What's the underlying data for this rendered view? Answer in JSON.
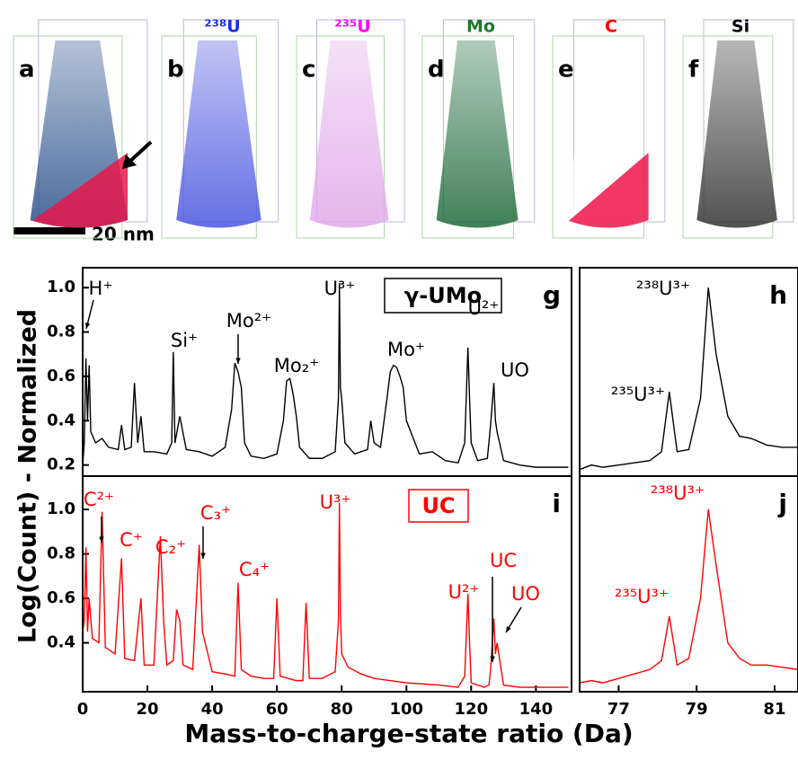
{
  "figure": {
    "panels": [
      {
        "letter": "a"
      },
      {
        "letter": "b",
        "element": "²³⁸U"
      },
      {
        "letter": "c",
        "element": "²³⁵U"
      },
      {
        "letter": "d",
        "element": "Mo"
      },
      {
        "letter": "e",
        "element": "C"
      },
      {
        "letter": "f",
        "element": "Si"
      }
    ],
    "scale_bar": "20 nm",
    "y_label": "Log(Count) - Normalized",
    "x_label": "Mass-to-charge-state ratio (Da)"
  },
  "chart_data": [
    {
      "type": "line",
      "label": "g",
      "title": "γ-UMo",
      "color": "#000000",
      "x": [
        0,
        0.5,
        1,
        1.5,
        2,
        2.5,
        4,
        6,
        8,
        11,
        12,
        13,
        15,
        16,
        17,
        18,
        19,
        22,
        26,
        27.5,
        28,
        28.5,
        30,
        32,
        36,
        40,
        44,
        46,
        47,
        48,
        49,
        50,
        52,
        56,
        60,
        62,
        63,
        64,
        65,
        66,
        67,
        70,
        74,
        78,
        79,
        79.3,
        79.6,
        80,
        81,
        84,
        88,
        89,
        90,
        92,
        94,
        95,
        96,
        97,
        98,
        99,
        100,
        104,
        108,
        112,
        116,
        118,
        119,
        119.5,
        120,
        122,
        125,
        126,
        127,
        127.5,
        128,
        130,
        135,
        140,
        145,
        150
      ],
      "values": [
        0.2,
        0.3,
        0.68,
        0.4,
        0.65,
        0.35,
        0.3,
        0.32,
        0.28,
        0.27,
        0.38,
        0.27,
        0.28,
        0.57,
        0.3,
        0.42,
        0.26,
        0.26,
        0.25,
        0.3,
        0.71,
        0.3,
        0.42,
        0.27,
        0.26,
        0.24,
        0.28,
        0.45,
        0.66,
        0.62,
        0.55,
        0.3,
        0.24,
        0.23,
        0.25,
        0.4,
        0.58,
        0.59,
        0.52,
        0.42,
        0.28,
        0.23,
        0.23,
        0.26,
        0.5,
        1.02,
        0.55,
        0.5,
        0.3,
        0.25,
        0.27,
        0.4,
        0.3,
        0.28,
        0.5,
        0.62,
        0.65,
        0.64,
        0.6,
        0.55,
        0.4,
        0.25,
        0.26,
        0.22,
        0.21,
        0.3,
        0.73,
        0.5,
        0.3,
        0.22,
        0.23,
        0.38,
        0.57,
        0.4,
        0.35,
        0.22,
        0.2,
        0.19,
        0.19,
        0.19
      ],
      "xlim": [
        0,
        151
      ],
      "ylim": [
        0.15,
        1.09
      ],
      "yticks": [
        0.2,
        0.4,
        0.6,
        0.8,
        {
          "value": 1,
          "label": "1.0"
        }
      ],
      "annotations": [
        "H⁺",
        "Si⁺",
        "Mo²⁺",
        "Mo₂⁺",
        "U³⁺",
        "Mo⁺",
        "U²⁺",
        "UO"
      ]
    },
    {
      "type": "line",
      "label": "h",
      "color": "#000000",
      "x": [
        76,
        76.3,
        76.6,
        77,
        77.4,
        77.8,
        78.1,
        78.3,
        78.5,
        78.8,
        79.1,
        79.3,
        79.5,
        79.8,
        80.1,
        80.4,
        80.8,
        81.2,
        81.6
      ],
      "values": [
        0.18,
        0.2,
        0.19,
        0.2,
        0.21,
        0.22,
        0.26,
        0.53,
        0.26,
        0.27,
        0.5,
        1.0,
        0.7,
        0.42,
        0.33,
        0.32,
        0.29,
        0.28,
        0.28
      ],
      "xlim": [
        76,
        81.6
      ],
      "ylim": [
        0.15,
        1.09
      ],
      "annotations": [
        "²³⁸U³⁺",
        "²³⁵U³⁺"
      ]
    },
    {
      "type": "line",
      "label": "i",
      "title": "UC",
      "color": "#ff0000",
      "x": [
        0,
        0.5,
        1,
        1.5,
        2,
        3,
        5,
        6,
        7,
        10,
        12,
        13,
        16,
        18,
        19,
        22,
        24,
        25,
        26,
        28,
        29,
        30,
        31,
        34,
        36,
        37,
        40,
        44,
        47,
        48,
        49,
        52,
        56,
        59,
        60,
        61,
        66,
        68,
        69,
        70,
        74,
        78,
        79,
        79.3,
        79.6,
        80,
        82,
        86,
        90,
        100,
        110,
        116,
        118,
        119,
        119.5,
        120,
        124,
        125.5,
        126,
        127,
        127.5,
        128,
        130,
        135,
        140,
        145,
        150
      ],
      "values": [
        0.45,
        0.5,
        0.83,
        0.45,
        0.6,
        0.42,
        0.4,
        0.99,
        0.38,
        0.35,
        0.78,
        0.33,
        0.32,
        0.6,
        0.3,
        0.3,
        0.88,
        0.5,
        0.3,
        0.32,
        0.55,
        0.5,
        0.3,
        0.28,
        0.84,
        0.45,
        0.27,
        0.26,
        0.25,
        0.67,
        0.28,
        0.25,
        0.24,
        0.24,
        0.6,
        0.25,
        0.23,
        0.23,
        0.58,
        0.24,
        0.24,
        0.27,
        0.5,
        1.03,
        0.55,
        0.35,
        0.29,
        0.26,
        0.24,
        0.22,
        0.21,
        0.2,
        0.25,
        0.62,
        0.4,
        0.22,
        0.2,
        0.21,
        0.28,
        0.51,
        0.35,
        0.4,
        0.21,
        0.2,
        0.2,
        0.2,
        0.2
      ],
      "xlim": [
        0,
        151
      ],
      "ylim": [
        0.18,
        1.15
      ],
      "xticks": [
        0,
        20,
        40,
        60,
        80,
        100,
        120,
        140
      ],
      "yticks": [
        0.4,
        0.6,
        0.8,
        {
          "value": 1,
          "label": "1.0"
        }
      ],
      "annotations": [
        "C²⁺",
        "C⁺",
        "C₂⁺",
        "C₃⁺",
        "C₄⁺",
        "U³⁺",
        "U²⁺",
        "UC",
        "UO"
      ]
    },
    {
      "type": "line",
      "label": "j",
      "color": "#ff0000",
      "x": [
        76,
        76.3,
        76.6,
        77,
        77.4,
        77.8,
        78.1,
        78.3,
        78.5,
        78.8,
        79.1,
        79.3,
        79.5,
        79.8,
        80.1,
        80.4,
        80.8,
        81.2,
        81.6
      ],
      "values": [
        0.22,
        0.23,
        0.22,
        0.24,
        0.26,
        0.28,
        0.32,
        0.52,
        0.3,
        0.33,
        0.6,
        1.0,
        0.75,
        0.4,
        0.33,
        0.3,
        0.3,
        0.29,
        0.28
      ],
      "xlim": [
        76,
        81.6
      ],
      "ylim": [
        0.18,
        1.15
      ],
      "xticks": [
        77,
        79,
        81
      ],
      "annotations": [
        "²³⁸U³⁺",
        "²³⁵U³⁺"
      ]
    }
  ]
}
